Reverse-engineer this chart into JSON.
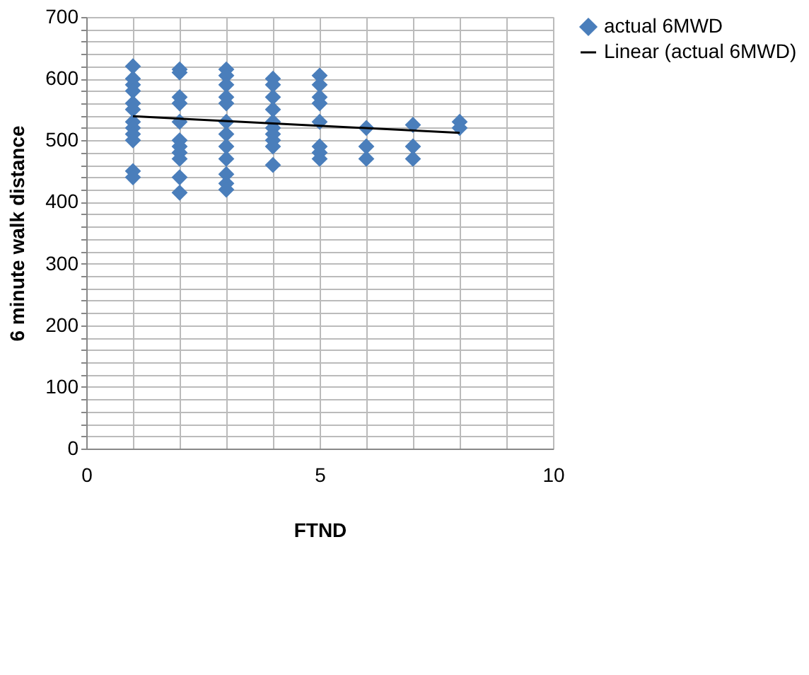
{
  "chart_data": {
    "type": "scatter",
    "xlabel": "FTND",
    "ylabel": "6 minute walk distance",
    "xlim": [
      0,
      10
    ],
    "ylim": [
      0,
      700
    ],
    "xticks": [
      0,
      {
        "value": 1,
        "label": null
      },
      {
        "value": 2,
        "label": null
      },
      {
        "value": 3,
        "label": null
      },
      {
        "value": 4,
        "label": null
      },
      5,
      {
        "value": 6,
        "label": null
      },
      {
        "value": 7,
        "label": null
      },
      {
        "value": 8,
        "label": null
      },
      {
        "value": 9,
        "label": null
      },
      10
    ],
    "yticks": [
      0,
      {
        "value": 20,
        "label": null
      },
      {
        "value": 40,
        "label": null
      },
      {
        "value": 60,
        "label": null
      },
      {
        "value": 80,
        "label": null
      },
      100,
      {
        "value": 120,
        "label": null
      },
      {
        "value": 140,
        "label": null
      },
      {
        "value": 160,
        "label": null
      },
      {
        "value": 180,
        "label": null
      },
      200,
      {
        "value": 220,
        "label": null
      },
      {
        "value": 240,
        "label": null
      },
      {
        "value": 260,
        "label": null
      },
      {
        "value": 280,
        "label": null
      },
      300,
      {
        "value": 320,
        "label": null
      },
      {
        "value": 340,
        "label": null
      },
      {
        "value": 360,
        "label": null
      },
      {
        "value": 380,
        "label": null
      },
      400,
      {
        "value": 420,
        "label": null
      },
      {
        "value": 440,
        "label": null
      },
      {
        "value": 460,
        "label": null
      },
      {
        "value": 480,
        "label": null
      },
      500,
      {
        "value": 520,
        "label": null
      },
      {
        "value": 540,
        "label": null
      },
      {
        "value": 560,
        "label": null
      },
      {
        "value": 580,
        "label": null
      },
      600,
      {
        "value": 620,
        "label": null
      },
      {
        "value": 640,
        "label": null
      },
      {
        "value": 660,
        "label": null
      },
      {
        "value": 680,
        "label": null
      },
      700
    ],
    "grid": true,
    "legend": "right",
    "marker": "diamond",
    "series": [
      {
        "name": "actual 6MWD",
        "type": "scatter",
        "color": "#4a7ebb",
        "x": [
          1,
          1,
          1,
          1,
          1,
          1,
          1,
          1,
          1,
          1,
          1,
          1,
          2,
          2,
          2,
          2,
          2,
          2,
          2,
          2,
          2,
          2,
          2,
          3,
          3,
          3,
          3,
          3,
          3,
          3,
          3,
          3,
          3,
          3,
          3,
          4,
          4,
          4,
          4,
          4,
          4,
          4,
          4,
          4,
          4,
          5,
          5,
          5,
          5,
          5,
          5,
          5,
          5,
          6,
          6,
          6,
          7,
          7,
          7,
          8,
          8
        ],
        "values": [
          620,
          600,
          590,
          580,
          560,
          550,
          530,
          520,
          510,
          500,
          450,
          440,
          615,
          610,
          570,
          560,
          530,
          500,
          490,
          480,
          470,
          440,
          415,
          615,
          605,
          590,
          570,
          560,
          530,
          510,
          490,
          470,
          445,
          430,
          420,
          600,
          590,
          570,
          550,
          530,
          520,
          510,
          500,
          490,
          460,
          605,
          590,
          570,
          560,
          530,
          490,
          480,
          470,
          520,
          490,
          470,
          525,
          490,
          470,
          530,
          520
        ]
      },
      {
        "name": "Linear (actual 6MWD)",
        "type": "line",
        "color": "#000000",
        "line_style": "solid",
        "marker": "none",
        "x": [
          1,
          8
        ],
        "values": [
          539,
          512
        ]
      }
    ]
  }
}
